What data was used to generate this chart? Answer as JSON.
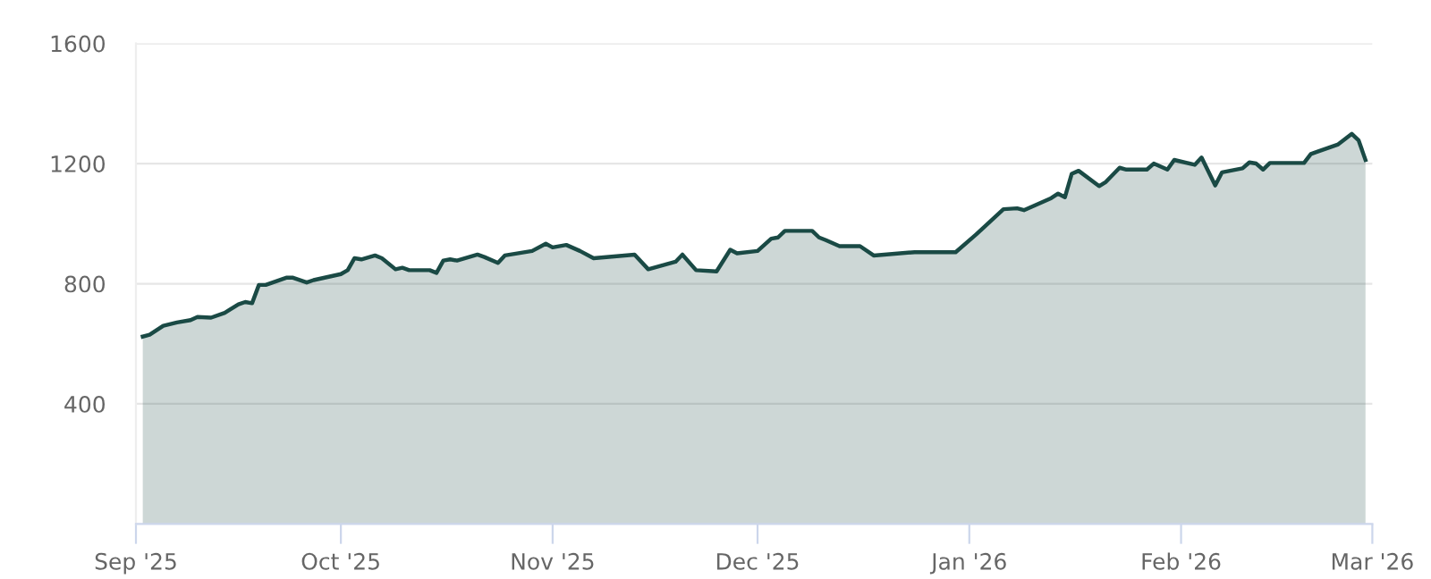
{
  "chart_data": {
    "type": "area",
    "x": [
      "2025-09-02",
      "2025-09-03",
      "2025-09-05",
      "2025-09-07",
      "2025-09-09",
      "2025-09-10",
      "2025-09-12",
      "2025-09-14",
      "2025-09-16",
      "2025-09-17",
      "2025-09-18",
      "2025-09-19",
      "2025-09-20",
      "2025-09-23",
      "2025-09-24",
      "2025-09-26",
      "2025-09-27",
      "2025-10-01",
      "2025-10-02",
      "2025-10-03",
      "2025-10-04",
      "2025-10-06",
      "2025-10-07",
      "2025-10-09",
      "2025-10-10",
      "2025-10-11",
      "2025-10-14",
      "2025-10-15",
      "2025-10-16",
      "2025-10-17",
      "2025-10-18",
      "2025-10-21",
      "2025-10-22",
      "2025-10-24",
      "2025-10-25",
      "2025-10-29",
      "2025-10-31",
      "2025-11-01",
      "2025-11-03",
      "2025-11-05",
      "2025-11-07",
      "2025-11-13",
      "2025-11-15",
      "2025-11-19",
      "2025-11-20",
      "2025-11-22",
      "2025-11-25",
      "2025-11-27",
      "2025-11-28",
      "2025-12-01",
      "2025-12-03",
      "2025-12-04",
      "2025-12-05",
      "2025-12-09",
      "2025-12-10",
      "2025-12-11",
      "2025-12-13",
      "2025-12-16",
      "2025-12-18",
      "2025-12-24",
      "2025-12-30",
      "2026-01-02",
      "2026-01-06",
      "2026-01-08",
      "2026-01-09",
      "2026-01-13",
      "2026-01-14",
      "2026-01-15",
      "2026-01-16",
      "2026-01-17",
      "2026-01-20",
      "2026-01-21",
      "2026-01-23",
      "2026-01-24",
      "2026-01-27",
      "2026-01-28",
      "2026-01-30",
      "2026-01-31",
      "2026-02-03",
      "2026-02-04",
      "2026-02-06",
      "2026-02-07",
      "2026-02-10",
      "2026-02-11",
      "2026-02-12",
      "2026-02-13",
      "2026-02-14",
      "2026-02-19",
      "2026-02-20",
      "2026-02-21",
      "2026-02-24",
      "2026-02-26",
      "2026-02-27",
      "2026-02-28"
    ],
    "series": [
      {
        "color": "#1a4a45",
        "values": [
          624,
          630,
          660,
          671,
          679,
          689,
          687,
          703,
          731,
          739,
          735,
          796,
          796,
          820,
          820,
          804,
          812,
          832,
          845,
          885,
          881,
          894,
          885,
          848,
          853,
          845,
          845,
          836,
          877,
          881,
          877,
          897,
          889,
          869,
          894,
          909,
          933,
          921,
          929,
          909,
          885,
          897,
          848,
          873,
          897,
          845,
          841,
          913,
          901,
          909,
          950,
          954,
          976,
          976,
          954,
          945,
          925,
          925,
          894,
          905,
          905,
          964,
          1048,
          1051,
          1045,
          1085,
          1100,
          1088,
          1166,
          1176,
          1125,
          1139,
          1186,
          1180,
          1180,
          1200,
          1180,
          1212,
          1196,
          1220,
          1127,
          1171,
          1184,
          1204,
          1200,
          1180,
          1202,
          1202,
          1232,
          1240,
          1264,
          1299,
          1277,
          1212
        ]
      }
    ],
    "xlim": [
      "2025-09-01",
      "2026-03-01"
    ],
    "xticks": [
      {
        "value": "2025-09-01",
        "label": "Sep '25"
      },
      {
        "value": "2025-10-01",
        "label": "Oct '25"
      },
      {
        "value": "2025-11-01",
        "label": "Nov '25"
      },
      {
        "value": "2025-12-01",
        "label": "Dec '25"
      },
      {
        "value": "2026-01-01",
        "label": "Jan '26"
      },
      {
        "value": "2026-02-01",
        "label": "Feb '26"
      },
      {
        "value": "2026-03-01",
        "label": "Mar '26"
      }
    ],
    "ylim": [
      0,
      1600
    ],
    "yticks": [
      400,
      800,
      1200,
      1600
    ],
    "grid": "y",
    "marker": "none",
    "line_style": "solid"
  }
}
